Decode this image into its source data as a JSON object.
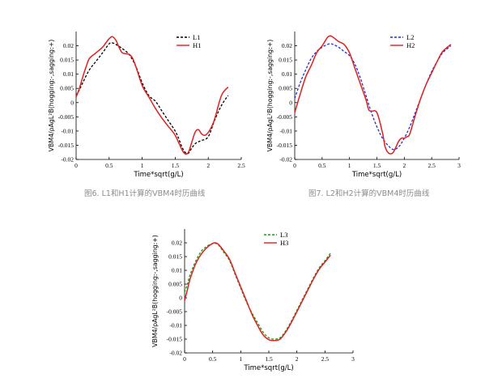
{
  "figures": [
    {
      "caption": "图6. L1和H1计算的VBM4时历曲线",
      "chart_data": {
        "type": "line",
        "xlabel": "Time*sqrt(g/L)",
        "ylabel": "VBM4/ρAgL²B(hogging:-,sagging:+)",
        "xlim": [
          0,
          2.5
        ],
        "ylim": [
          -0.02,
          0.025
        ],
        "xticks": [
          0,
          0.5,
          1,
          1.5,
          2,
          2.5
        ],
        "xtick_labels": [
          "0",
          "0.5",
          "1",
          "1.5",
          "2",
          "2.5"
        ],
        "yticks": [
          -0.02,
          -0.015,
          -0.01,
          -0.005,
          0,
          0.005,
          0.01,
          0.015,
          0.02
        ],
        "ytick_labels": [
          "-0.02",
          "-0.015",
          "-0.01",
          "-0.005",
          "0",
          "0.005",
          "0.01",
          "0.015",
          "0.02"
        ],
        "grid": false,
        "legend_position": "top-right",
        "series": [
          {
            "name": "L1",
            "color": "#000000",
            "dash": "dashed",
            "x": [
              0,
              0.05,
              0.1,
              0.2,
              0.3,
              0.4,
              0.5,
              0.55,
              0.6,
              0.7,
              0.8,
              0.9,
              1.0,
              1.1,
              1.2,
              1.3,
              1.4,
              1.5,
              1.55,
              1.6,
              1.65,
              1.7,
              1.75,
              1.8,
              1.85,
              1.9,
              2.0,
              2.1,
              2.2,
              2.3
            ],
            "y": [
              0.0025,
              0.0045,
              0.007,
              0.0115,
              0.0145,
              0.0175,
              0.0207,
              0.021,
              0.0205,
              0.019,
              0.017,
              0.013,
              0.007,
              0.0025,
              0.0005,
              -0.003,
              -0.0065,
              -0.01,
              -0.0125,
              -0.0155,
              -0.0175,
              -0.0178,
              -0.016,
              -0.0145,
              -0.0138,
              -0.0133,
              -0.012,
              -0.006,
              -0.001,
              0.0025
            ]
          },
          {
            "name": "H1",
            "color": "#e02020",
            "dash": "solid",
            "x": [
              0,
              0.05,
              0.1,
              0.15,
              0.2,
              0.3,
              0.4,
              0.45,
              0.5,
              0.55,
              0.6,
              0.65,
              0.7,
              0.8,
              0.85,
              0.9,
              1.0,
              1.1,
              1.2,
              1.3,
              1.4,
              1.5,
              1.6,
              1.65,
              1.7,
              1.75,
              1.8,
              1.85,
              1.9,
              1.95,
              2.0,
              2.05,
              2.1,
              2.2,
              2.3
            ],
            "y": [
              0.002,
              0.005,
              0.009,
              0.0125,
              0.0155,
              0.0175,
              0.0195,
              0.021,
              0.0225,
              0.0232,
              0.022,
              0.0195,
              0.0175,
              0.017,
              0.0158,
              0.013,
              0.006,
              0.002,
              -0.002,
              -0.0055,
              -0.0085,
              -0.0115,
              -0.0165,
              -0.018,
              -0.0175,
              -0.014,
              -0.0105,
              -0.0095,
              -0.011,
              -0.0115,
              -0.0105,
              -0.0085,
              -0.0055,
              0.0025,
              0.0055
            ]
          }
        ]
      }
    },
    {
      "caption": "图7. L2和H2计算的VBM4时历曲线",
      "chart_data": {
        "type": "line",
        "xlabel": "Time*sqrt(g/L)",
        "ylabel": "VBM4/ρAgL²B(hogging:-,sagging:+)",
        "xlim": [
          0,
          3
        ],
        "ylim": [
          -0.02,
          0.025
        ],
        "xticks": [
          0,
          0.5,
          1,
          1.5,
          2,
          2.5,
          3
        ],
        "xtick_labels": [
          "0",
          "0.5",
          "1",
          "1.5",
          "2",
          "2.5",
          "3"
        ],
        "yticks": [
          -0.02,
          -0.015,
          -0.01,
          -0.005,
          0,
          0.005,
          0.01,
          0.015,
          0.02
        ],
        "ytick_labels": [
          "-0.02",
          "-0.015",
          "-0.01",
          "-0.005",
          "0",
          "0.005",
          "0.01",
          "0.015",
          "0.02"
        ],
        "grid": false,
        "legend_position": "top-right",
        "series": [
          {
            "name": "L2",
            "color": "#1f2fd0",
            "dash": "dashed",
            "x": [
              0,
              0.1,
              0.2,
              0.3,
              0.4,
              0.5,
              0.6,
              0.65,
              0.7,
              0.8,
              0.9,
              1.0,
              1.1,
              1.2,
              1.3,
              1.4,
              1.5,
              1.6,
              1.7,
              1.8,
              1.9,
              2.0,
              2.1,
              2.2,
              2.3,
              2.4,
              2.5,
              2.6,
              2.7,
              2.85
            ],
            "y": [
              0.0015,
              0.007,
              0.0115,
              0.0155,
              0.018,
              0.0195,
              0.0205,
              0.0207,
              0.0205,
              0.0195,
              0.018,
              0.0165,
              0.0135,
              0.0085,
              0.0025,
              -0.0035,
              -0.0085,
              -0.0125,
              -0.015,
              -0.0165,
              -0.0155,
              -0.0125,
              -0.0085,
              -0.0035,
              0.0015,
              0.0065,
              0.011,
              0.0145,
              0.0175,
              0.02
            ]
          },
          {
            "name": "H2",
            "color": "#e02020",
            "dash": "solid",
            "x": [
              0,
              0.1,
              0.2,
              0.3,
              0.4,
              0.5,
              0.55,
              0.6,
              0.65,
              0.7,
              0.8,
              0.9,
              1.0,
              1.1,
              1.2,
              1.3,
              1.35,
              1.4,
              1.5,
              1.6,
              1.65,
              1.7,
              1.75,
              1.8,
              1.85,
              1.9,
              1.95,
              2.0,
              2.05,
              2.1,
              2.2,
              2.3,
              2.4,
              2.5,
              2.6,
              2.7,
              2.85
            ],
            "y": [
              -0.0035,
              0.003,
              0.009,
              0.013,
              0.0175,
              0.02,
              0.0215,
              0.023,
              0.0235,
              0.023,
              0.0215,
              0.0205,
              0.0175,
              0.012,
              0.0065,
              0.001,
              -0.0025,
              -0.003,
              -0.0035,
              -0.0105,
              -0.0155,
              -0.0175,
              -0.018,
              -0.0175,
              -0.0155,
              -0.0135,
              -0.0125,
              -0.0125,
              -0.012,
              -0.011,
              -0.0045,
              0.0015,
              0.0065,
              0.0105,
              0.0145,
              0.018,
              0.0205
            ]
          }
        ]
      }
    },
    {
      "caption": "",
      "chart_data": {
        "type": "line",
        "xlabel": "Time*sqrt(g/L)",
        "ylabel": "VBM4/ρAgL²B(hogging:-,sagging:+)",
        "xlim": [
          0,
          3
        ],
        "ylim": [
          -0.02,
          0.025
        ],
        "xticks": [
          0,
          0.5,
          1,
          1.5,
          2,
          2.5,
          3
        ],
        "xtick_labels": [
          "0",
          "0.5",
          "1",
          "1.5",
          "2",
          "2.5",
          "3"
        ],
        "yticks": [
          -0.02,
          -0.015,
          -0.01,
          -0.005,
          0,
          0.005,
          0.01,
          0.015,
          0.02
        ],
        "ytick_labels": [
          "-0.02",
          "-0.015",
          "-0.01",
          "-0.005",
          "0",
          "0.005",
          "0.01",
          "0.015",
          "0.02"
        ],
        "grid": false,
        "legend_position": "top-right",
        "series": [
          {
            "name": "L3",
            "color": "#1a9a1a",
            "dash": "dashed",
            "x": [
              0,
              0.05,
              0.1,
              0.2,
              0.3,
              0.4,
              0.5,
              0.55,
              0.6,
              0.7,
              0.8,
              0.9,
              1.0,
              1.1,
              1.2,
              1.3,
              1.4,
              1.5,
              1.6,
              1.7,
              1.8,
              1.9,
              2.0,
              2.1,
              2.2,
              2.3,
              2.4,
              2.5,
              2.6
            ],
            "y": [
              0.002,
              0.005,
              0.0085,
              0.0135,
              0.017,
              0.0188,
              0.0198,
              0.0198,
              0.0193,
              0.0165,
              0.0135,
              0.0085,
              0.0035,
              -0.0015,
              -0.0055,
              -0.009,
              -0.0125,
              -0.0145,
              -0.015,
              -0.0145,
              -0.012,
              -0.0085,
              -0.0045,
              -0.0005,
              0.0035,
              0.0075,
              0.011,
              0.0135,
              0.0163
            ]
          },
          {
            "name": "H3",
            "color": "#e02020",
            "dash": "solid",
            "x": [
              0,
              0.05,
              0.1,
              0.2,
              0.3,
              0.4,
              0.5,
              0.55,
              0.6,
              0.7,
              0.8,
              0.9,
              1.0,
              1.1,
              1.2,
              1.3,
              1.4,
              1.5,
              1.6,
              1.7,
              1.8,
              1.9,
              2.0,
              2.1,
              2.2,
              2.3,
              2.4,
              2.5,
              2.6
            ],
            "y": [
              -0.001,
              0.003,
              0.007,
              0.0125,
              0.016,
              0.0183,
              0.0198,
              0.02,
              0.0195,
              0.017,
              0.014,
              0.009,
              0.004,
              -0.001,
              -0.006,
              -0.01,
              -0.0135,
              -0.0152,
              -0.0155,
              -0.015,
              -0.0125,
              -0.009,
              -0.005,
              -0.001,
              0.003,
              0.007,
              0.0105,
              0.013,
              0.0155
            ]
          }
        ]
      }
    }
  ]
}
